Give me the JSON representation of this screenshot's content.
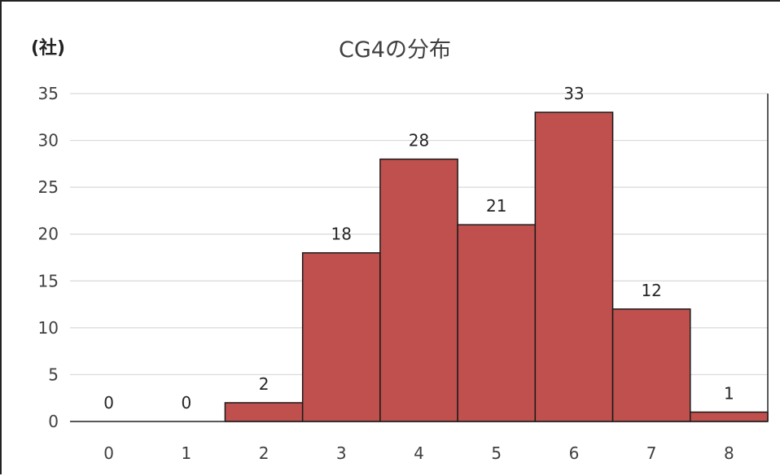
{
  "chart_data": {
    "type": "bar",
    "title": "CG4の分布",
    "unit_label": "(社)",
    "xlabel": "",
    "ylabel": "",
    "categories": [
      "0",
      "1",
      "2",
      "3",
      "4",
      "5",
      "6",
      "7",
      "8"
    ],
    "values": [
      0,
      0,
      2,
      18,
      28,
      21,
      33,
      12,
      1
    ],
    "data_labels": [
      "0",
      "0",
      "2",
      "18",
      "28",
      "21",
      "33",
      "12",
      "1"
    ],
    "ylim": [
      0,
      35
    ],
    "yticks": [
      "0",
      "5",
      "10",
      "15",
      "20",
      "25",
      "30",
      "35"
    ],
    "grid": true,
    "legend": "none",
    "bar_color": "#C0504D",
    "bar_edge_color": "#1a1a1a",
    "grid_color": "#D9D9D9"
  }
}
